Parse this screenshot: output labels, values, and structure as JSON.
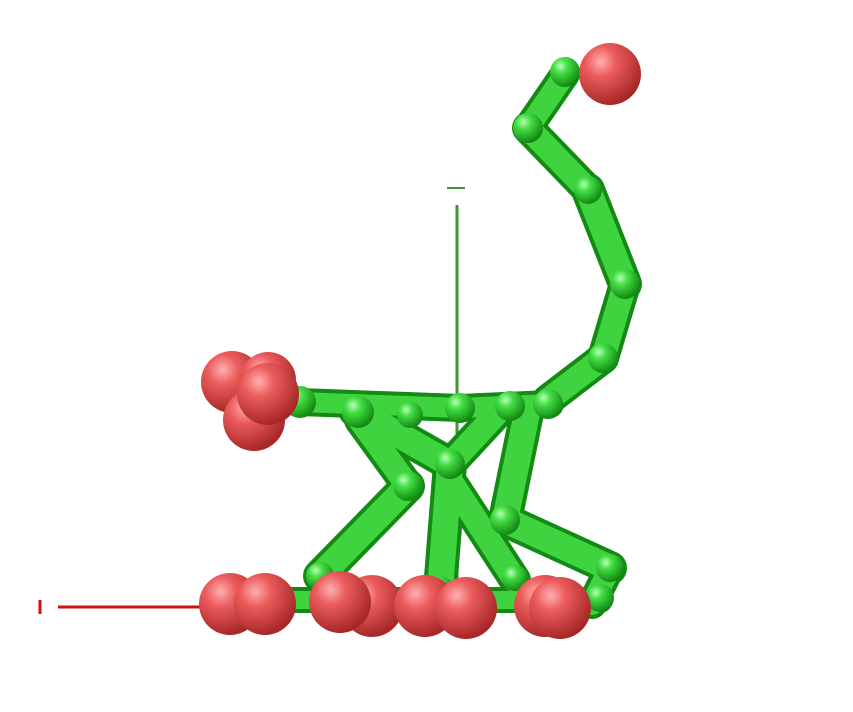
{
  "scene": {
    "background": "#ffffff",
    "colors": {
      "body_green": "#33cc33",
      "body_green_dark": "#1f8f1f",
      "foot_red": "#e85a5a",
      "foot_red_dark": "#b83a3a",
      "axis_x": "#cc1111",
      "axis_y": "#3a9a2a",
      "axis_z": "#1a5ac8"
    },
    "axes": {
      "x_label": "",
      "y_label": "",
      "z_label": ""
    }
  }
}
